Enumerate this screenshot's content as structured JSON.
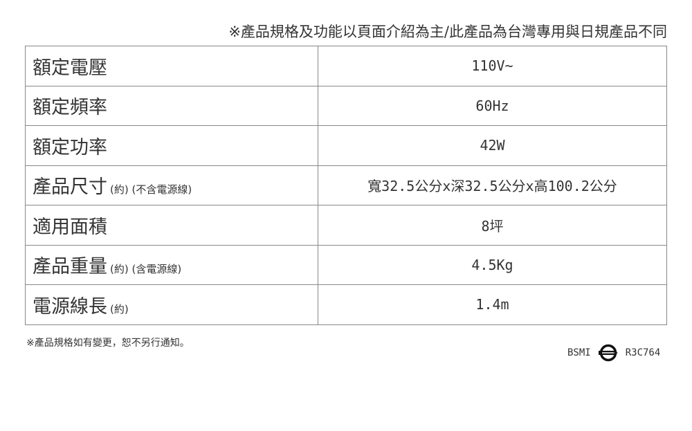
{
  "top_note": "※產品規格及功能以頁面介紹為主/此產品為台灣專用與日規產品不同",
  "rows": [
    {
      "label": "額定電壓",
      "sub": "",
      "value": "110V~"
    },
    {
      "label": "額定頻率",
      "sub": "",
      "value": "60Hz"
    },
    {
      "label": "額定功率",
      "sub": "",
      "value": "42W"
    },
    {
      "label": "產品尺寸",
      "sub": "(約) (不含電源線)",
      "value": "寬32.5公分x深32.5公分x高100.2公分"
    },
    {
      "label": "適用面積",
      "sub": "",
      "value": "8坪"
    },
    {
      "label": "產品重量",
      "sub": "(約) (含電源線)",
      "value": "4.5Kg"
    },
    {
      "label": "電源線長",
      "sub": "(約)",
      "value": "1.4m"
    }
  ],
  "footnote": "※產品規格如有變更，恕不另行通知。",
  "bsmi": {
    "prefix": "BSMI",
    "code": "R3C764"
  }
}
